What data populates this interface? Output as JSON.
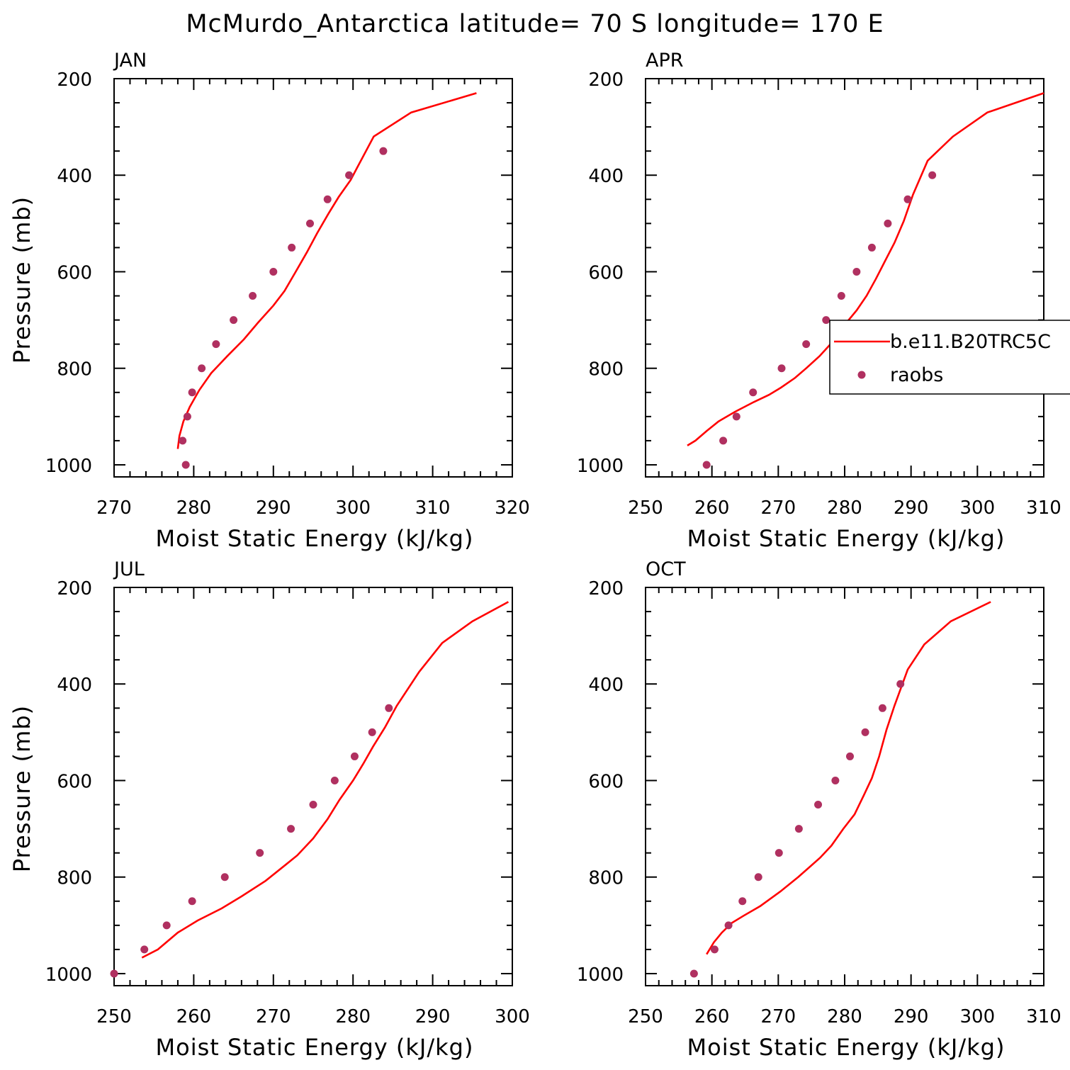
{
  "figure": {
    "title": "McMurdo_Antarctica  latitude= 70 S longitude= 170 E"
  },
  "legend": {
    "series_model": "b.e11.B20TRC5C",
    "series_obs": "raobs"
  },
  "colors": {
    "model_line": "#ff0000",
    "obs_marker": "#b03060",
    "axes": "#000000"
  },
  "chart_data": [
    {
      "type": "line",
      "title": "JAN",
      "xlabel": "Moist Static Energy (kJ/kg)",
      "ylabel": "Pressure (mb)",
      "xlim": [
        270,
        320
      ],
      "ylim": [
        200,
        1025
      ],
      "y_inverted": true,
      "xticks": [
        "270",
        "280",
        "290",
        "300",
        "310",
        "320"
      ],
      "yticks": [
        "200",
        "400",
        "600",
        "800",
        "1000"
      ],
      "series": [
        {
          "name": "b.e11.B20TRC5C",
          "style": "line",
          "points": [
            [
              278.0,
              967
            ],
            [
              278.2,
              940
            ],
            [
              278.7,
              910
            ],
            [
              279.5,
              880
            ],
            [
              280.7,
              845
            ],
            [
              282.2,
              810
            ],
            [
              284.2,
              775
            ],
            [
              286.3,
              740
            ],
            [
              288.1,
              705
            ],
            [
              290.0,
              670
            ],
            [
              291.4,
              640
            ],
            [
              292.8,
              600
            ],
            [
              294.2,
              560
            ],
            [
              295.5,
              520
            ],
            [
              296.9,
              480
            ],
            [
              298.2,
              445
            ],
            [
              299.7,
              410
            ],
            [
              300.5,
              385
            ],
            [
              302.6,
              320
            ],
            [
              307.3,
              270
            ],
            [
              315.5,
              230
            ]
          ]
        },
        {
          "name": "raobs",
          "style": "marker",
          "points": [
            [
              279.0,
              1000
            ],
            [
              278.6,
              950
            ],
            [
              279.2,
              900
            ],
            [
              279.8,
              850
            ],
            [
              281.0,
              800
            ],
            [
              282.8,
              750
            ],
            [
              285.0,
              700
            ],
            [
              287.4,
              650
            ],
            [
              290.0,
              600
            ],
            [
              292.3,
              550
            ],
            [
              294.6,
              500
            ],
            [
              296.8,
              450
            ],
            [
              299.5,
              400
            ],
            [
              303.8,
              350
            ]
          ]
        }
      ]
    },
    {
      "type": "line",
      "title": "APR",
      "xlabel": "Moist Static Energy (kJ/kg)",
      "ylabel": "",
      "xlim": [
        250,
        310
      ],
      "ylim": [
        200,
        1025
      ],
      "y_inverted": true,
      "xticks": [
        "250",
        "260",
        "270",
        "280",
        "290",
        "300",
        "310"
      ],
      "yticks": [
        "200",
        "400",
        "600",
        "800",
        "1000"
      ],
      "legend_position": "right",
      "series": [
        {
          "name": "b.e11.B20TRC5C",
          "style": "line",
          "points": [
            [
              256.3,
              960
            ],
            [
              257.5,
              950
            ],
            [
              259.2,
              930
            ],
            [
              261.0,
              910
            ],
            [
              263.5,
              890
            ],
            [
              266.3,
              870
            ],
            [
              268.6,
              855
            ],
            [
              270.4,
              840
            ],
            [
              272.5,
              820
            ],
            [
              274.2,
              800
            ],
            [
              276.2,
              775
            ],
            [
              278.2,
              745
            ],
            [
              280.0,
              710
            ],
            [
              281.8,
              680
            ],
            [
              283.3,
              650
            ],
            [
              284.7,
              615
            ],
            [
              286.0,
              580
            ],
            [
              287.5,
              540
            ],
            [
              288.9,
              495
            ],
            [
              290.3,
              440
            ],
            [
              292.5,
              370
            ],
            [
              296.3,
              320
            ],
            [
              301.5,
              270
            ],
            [
              310.0,
              230
            ]
          ]
        },
        {
          "name": "raobs",
          "style": "marker",
          "points": [
            [
              259.2,
              1000
            ],
            [
              261.7,
              950
            ],
            [
              263.7,
              900
            ],
            [
              266.2,
              850
            ],
            [
              270.5,
              800
            ],
            [
              274.2,
              750
            ],
            [
              277.2,
              700
            ],
            [
              279.5,
              650
            ],
            [
              281.8,
              600
            ],
            [
              284.1,
              550
            ],
            [
              286.5,
              500
            ],
            [
              289.5,
              450
            ],
            [
              293.2,
              400
            ]
          ]
        }
      ]
    },
    {
      "type": "line",
      "title": "JUL",
      "xlabel": "Moist Static Energy (kJ/kg)",
      "ylabel": "Pressure (mb)",
      "xlim": [
        250,
        300
      ],
      "ylim": [
        200,
        1025
      ],
      "y_inverted": true,
      "xticks": [
        "250",
        "260",
        "270",
        "280",
        "290",
        "300"
      ],
      "yticks": [
        "200",
        "400",
        "600",
        "800",
        "1000"
      ],
      "series": [
        {
          "name": "b.e11.B20TRC5C",
          "style": "line",
          "points": [
            [
              253.5,
              967
            ],
            [
              255.5,
              950
            ],
            [
              258.0,
              915
            ],
            [
              260.5,
              890
            ],
            [
              263.5,
              865
            ],
            [
              266.0,
              840
            ],
            [
              269.0,
              808
            ],
            [
              271.5,
              775
            ],
            [
              273.0,
              755
            ],
            [
              275.0,
              720
            ],
            [
              276.8,
              680
            ],
            [
              278.3,
              640
            ],
            [
              280.0,
              600
            ],
            [
              281.3,
              565
            ],
            [
              282.5,
              530
            ],
            [
              284.0,
              490
            ],
            [
              285.5,
              445
            ],
            [
              288.3,
              375
            ],
            [
              291.2,
              315
            ],
            [
              295.0,
              270
            ],
            [
              299.5,
              230
            ]
          ]
        },
        {
          "name": "raobs",
          "style": "marker",
          "points": [
            [
              250.0,
              1000
            ],
            [
              253.8,
              950
            ],
            [
              256.6,
              900
            ],
            [
              259.8,
              850
            ],
            [
              263.9,
              800
            ],
            [
              268.3,
              750
            ],
            [
              272.2,
              700
            ],
            [
              275.0,
              650
            ],
            [
              277.7,
              600
            ],
            [
              280.2,
              550
            ],
            [
              282.4,
              500
            ],
            [
              284.5,
              450
            ]
          ]
        }
      ]
    },
    {
      "type": "line",
      "title": "OCT",
      "xlabel": "Moist Static Energy (kJ/kg)",
      "ylabel": "",
      "xlim": [
        250,
        310
      ],
      "ylim": [
        200,
        1025
      ],
      "y_inverted": true,
      "xticks": [
        "250",
        "260",
        "270",
        "280",
        "290",
        "300",
        "310"
      ],
      "yticks": [
        "200",
        "400",
        "600",
        "800",
        "1000"
      ],
      "series": [
        {
          "name": "b.e11.B20TRC5C",
          "style": "line",
          "points": [
            [
              259.2,
              960
            ],
            [
              260.3,
              935
            ],
            [
              261.5,
              915
            ],
            [
              263.0,
              895
            ],
            [
              264.8,
              880
            ],
            [
              267.3,
              860
            ],
            [
              270.3,
              830
            ],
            [
              273.0,
              800
            ],
            [
              276.3,
              760
            ],
            [
              278.0,
              735
            ],
            [
              279.8,
              700
            ],
            [
              281.5,
              670
            ],
            [
              282.9,
              630
            ],
            [
              284.1,
              595
            ],
            [
              285.2,
              550
            ],
            [
              286.3,
              495
            ],
            [
              287.5,
              445
            ],
            [
              289.5,
              370
            ],
            [
              292.0,
              318
            ],
            [
              296.0,
              270
            ],
            [
              302.0,
              230
            ]
          ]
        },
        {
          "name": "raobs",
          "style": "marker",
          "points": [
            [
              257.3,
              1000
            ],
            [
              260.4,
              950
            ],
            [
              262.5,
              900
            ],
            [
              264.6,
              850
            ],
            [
              267.0,
              800
            ],
            [
              270.1,
              750
            ],
            [
              273.1,
              700
            ],
            [
              276.0,
              650
            ],
            [
              278.6,
              600
            ],
            [
              280.8,
              550
            ],
            [
              283.1,
              500
            ],
            [
              285.7,
              450
            ],
            [
              288.4,
              400
            ]
          ]
        }
      ]
    }
  ]
}
